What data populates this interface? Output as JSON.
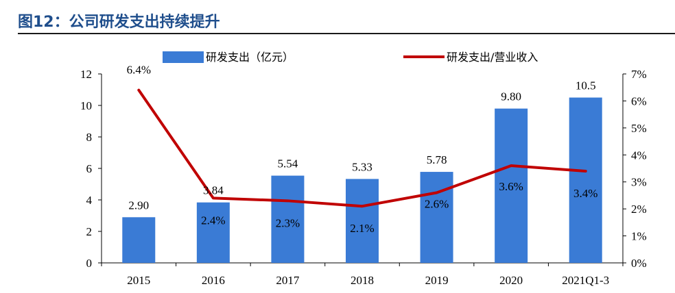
{
  "figure": {
    "title": "图12：公司研发支出持续提升"
  },
  "chart_data": {
    "type": "bar",
    "categories": [
      "2015",
      "2016",
      "2017",
      "2018",
      "2019",
      "2020",
      "2021Q1-3"
    ],
    "series": [
      {
        "name": "研发支出（亿元）",
        "type": "bar",
        "axis": "left",
        "values": [
          2.9,
          3.84,
          5.54,
          5.33,
          5.78,
          9.8,
          10.5
        ],
        "labels": [
          "2.90",
          "3.84",
          "5.54",
          "5.33",
          "5.78",
          "9.80",
          "10.5"
        ],
        "color": "#3a7bd5"
      },
      {
        "name": "研发支出/营业收入",
        "type": "line",
        "axis": "right",
        "values": [
          6.4,
          2.4,
          2.3,
          2.1,
          2.6,
          3.6,
          3.4
        ],
        "labels": [
          "6.4%",
          "2.4%",
          "2.3%",
          "2.1%",
          "2.6%",
          "3.6%",
          "3.4%"
        ],
        "color": "#c00000"
      }
    ],
    "y_left": {
      "range": [
        0,
        12
      ],
      "ticks": [
        "0",
        "2",
        "4",
        "6",
        "8",
        "10",
        "12"
      ]
    },
    "y_right": {
      "range": [
        0,
        7
      ],
      "ticks": [
        "0%",
        "1%",
        "2%",
        "3%",
        "4%",
        "5%",
        "6%",
        "7%"
      ]
    },
    "legend": {
      "position": "top"
    },
    "grid": false
  }
}
